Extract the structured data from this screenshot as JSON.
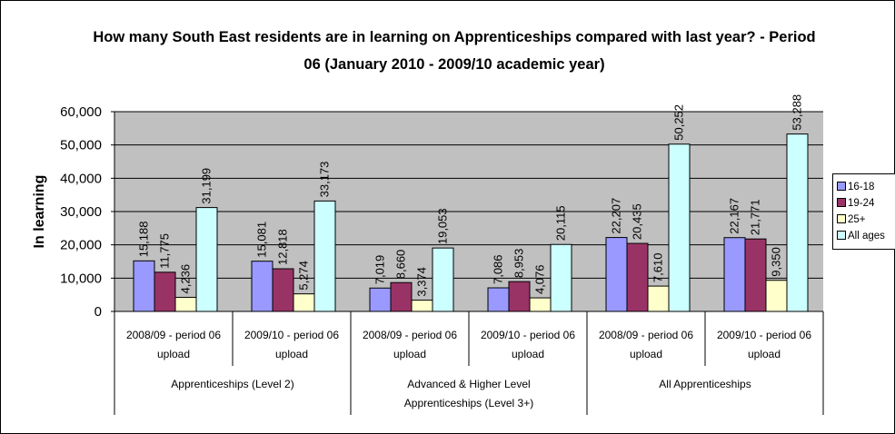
{
  "chart_data": {
    "type": "bar",
    "title": "How many South East residents are in learning on Apprenticeships compared with last year? - Period 06 (January 2010 - 2009/10 academic year)",
    "ylabel": "In learning",
    "xlabel": "",
    "ylim": [
      0,
      60000
    ],
    "yticks": [
      0,
      10000,
      20000,
      30000,
      40000,
      50000,
      60000
    ],
    "ytick_labels": [
      "0",
      "10,000",
      "20,000",
      "30,000",
      "40,000",
      "50,000",
      "60,000"
    ],
    "grid": true,
    "legend_position": "right",
    "categories": [
      [
        "2008/09 - period 06",
        "upload"
      ],
      [
        "2009/10 - period 06",
        "upload"
      ],
      [
        "2008/09 - period 06",
        "upload"
      ],
      [
        "2009/10 - period 06",
        "upload"
      ],
      [
        "2008/09 - period 06",
        "upload"
      ],
      [
        "2009/10 - period 06",
        "upload"
      ]
    ],
    "groups": [
      {
        "label": [
          "Apprenticeships (Level 2)"
        ],
        "span": 2
      },
      {
        "label": [
          "Advanced & Higher Level",
          "Apprenticeships (Level 3+)"
        ],
        "span": 2
      },
      {
        "label": [
          "All Apprenticeships"
        ],
        "span": 2
      }
    ],
    "series": [
      {
        "name": "16-18",
        "color": "#9999ff",
        "values": [
          15188,
          15081,
          7019,
          7086,
          22207,
          22167
        ],
        "labels": [
          "15,188",
          "15,081",
          "7,019",
          "7,086",
          "22,207",
          "22,167"
        ]
      },
      {
        "name": "19-24",
        "color": "#993366",
        "values": [
          11775,
          12818,
          8660,
          8953,
          20435,
          21771
        ],
        "labels": [
          "11,775",
          "12,818",
          "8,660",
          "8,953",
          "20,435",
          "21,771"
        ]
      },
      {
        "name": "25+",
        "color": "#ffffcc",
        "values": [
          4236,
          5274,
          3374,
          4076,
          7610,
          9350
        ],
        "labels": [
          "4,236",
          "5,274",
          "3,374",
          "4,076",
          "7,610",
          "9,350"
        ]
      },
      {
        "name": "All ages",
        "color": "#ccffff",
        "values": [
          31199,
          33173,
          19053,
          20115,
          50252,
          53288
        ],
        "labels": [
          "31,199",
          "33,173",
          "19,053",
          "20,115",
          "50,252",
          "53,288"
        ]
      }
    ],
    "colors": {
      "plot_background": "#c0c0c0",
      "gridline": "#000000",
      "axis": "#000000"
    }
  }
}
